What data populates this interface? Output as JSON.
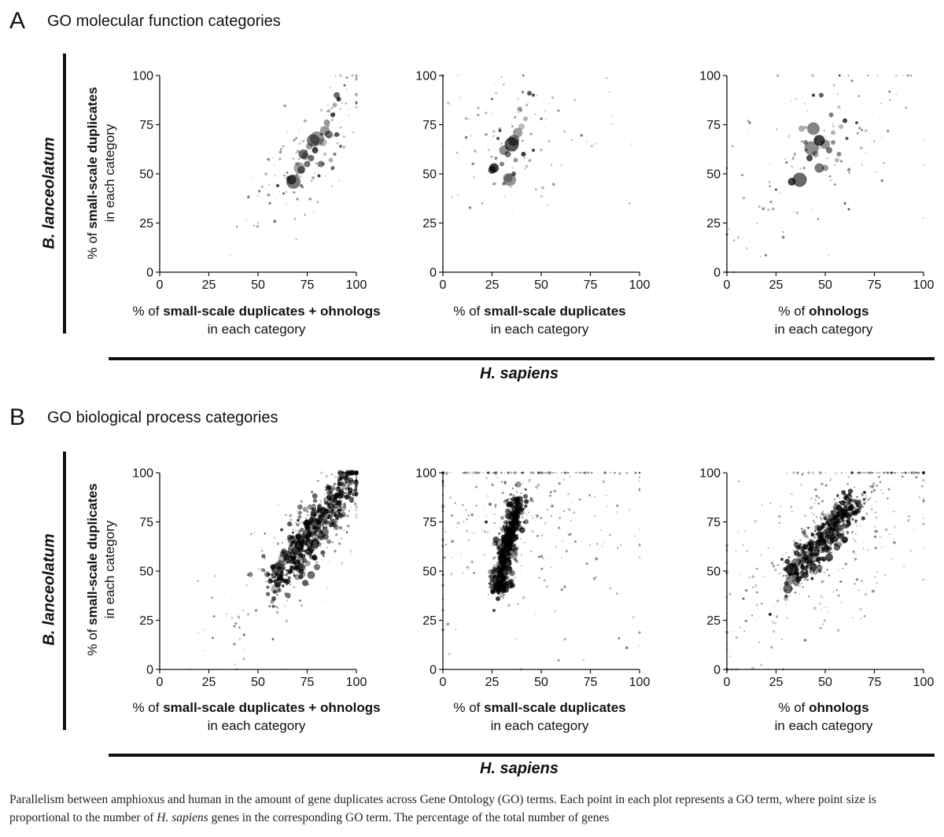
{
  "panels": [
    {
      "letter": "A",
      "title": "GO molecular function categories",
      "y_species": "B. lanceolatum",
      "x_species": "H. sapiens",
      "ylabel_prefix": "% of ",
      "ylabel_bold": "small-scale duplicates",
      "ylabel_line2": "in each category"
    },
    {
      "letter": "B",
      "title": "GO biological process categories",
      "y_species": "B. lanceolatum",
      "x_species": "H. sapiens",
      "ylabel_prefix": "% of ",
      "ylabel_bold": "small-scale duplicates",
      "ylabel_line2": "in each category"
    }
  ],
  "xlabels": [
    {
      "prefix": "% of ",
      "bold": "small-scale duplicates + ohnologs",
      "line2": "in each category"
    },
    {
      "prefix": "% of ",
      "bold": "small-scale duplicates",
      "line2": "in each category"
    },
    {
      "prefix": "% of ",
      "bold": "ohnologs",
      "line2": "in each category"
    }
  ],
  "caption": {
    "part1": "Parallelism between amphioxus and human in the amount of gene duplicates across Gene Ontology (GO) terms. Each point in each plot represents a GO term, where point size is proportional to the number of ",
    "italic": "H. sapiens",
    "part2": " genes in the corresponding GO term. The percentage of the total number of genes"
  },
  "chart_data": [
    {
      "type": "scatter",
      "panel": "A",
      "xlabel": "% of small-scale duplicates + ohnologs in each category",
      "ylabel": "% of small-scale duplicates in each category",
      "xlim": [
        0,
        100
      ],
      "ylim": [
        0,
        100
      ],
      "xticks": [
        0,
        25,
        50,
        75,
        100
      ],
      "yticks": [
        0,
        25,
        50,
        75,
        100
      ],
      "grid": false,
      "points": [
        [
          68,
          46,
          9
        ],
        [
          67,
          47,
          6
        ],
        [
          72,
          52,
          5
        ],
        [
          71,
          53,
          7
        ],
        [
          74,
          59,
          5
        ],
        [
          73,
          60,
          6
        ],
        [
          77,
          58,
          4
        ],
        [
          78,
          67,
          8
        ],
        [
          80,
          68,
          9
        ],
        [
          84,
          72,
          6
        ],
        [
          85,
          76,
          4
        ],
        [
          86,
          70,
          5
        ],
        [
          88,
          80,
          3
        ],
        [
          89,
          85,
          3
        ],
        [
          90,
          90,
          4
        ],
        [
          91,
          88,
          3
        ],
        [
          82,
          55,
          4
        ],
        [
          75,
          55,
          4
        ],
        [
          87,
          57,
          3
        ],
        [
          89,
          60,
          2
        ],
        [
          70,
          55,
          3
        ],
        [
          79,
          62,
          4
        ],
        [
          83,
          66,
          5
        ],
        [
          76,
          64,
          4
        ],
        [
          65,
          48,
          3
        ],
        [
          60,
          44,
          2
        ],
        [
          54,
          50,
          2
        ],
        [
          45,
          38,
          1.5
        ],
        [
          56,
          35,
          1.5
        ],
        [
          84,
          60,
          2
        ],
        [
          92,
          64,
          2
        ],
        [
          90,
          70,
          3
        ],
        [
          86,
          82,
          2
        ],
        [
          94,
          95,
          1.5
        ],
        [
          81,
          49,
          2
        ],
        [
          78,
          48,
          2
        ],
        [
          72,
          44,
          2
        ],
        [
          63,
          40,
          1.5
        ],
        [
          50,
          25,
          1.2
        ],
        [
          88,
          53,
          2.5
        ]
      ],
      "cloud": {
        "count": 120,
        "cx": 75,
        "cy": 60,
        "spread": 18,
        "slope": 1.0,
        "maxr": 1.6
      }
    },
    {
      "type": "scatter",
      "panel": "A",
      "xlabel": "% of small-scale duplicates in each category",
      "ylabel": "% of small-scale duplicates in each category",
      "xlim": [
        0,
        100
      ],
      "ylim": [
        0,
        100
      ],
      "xticks": [
        0,
        25,
        50,
        75,
        100
      ],
      "yticks": [
        0,
        25,
        50,
        75,
        100
      ],
      "grid": false,
      "points": [
        [
          26,
          53,
          6
        ],
        [
          25,
          52,
          5
        ],
        [
          31,
          62,
          6
        ],
        [
          35,
          65,
          9
        ],
        [
          36,
          67,
          7
        ],
        [
          38,
          71,
          6
        ],
        [
          40,
          74,
          4
        ],
        [
          34,
          47,
          8
        ],
        [
          33,
          48,
          6
        ],
        [
          30,
          55,
          3
        ],
        [
          37,
          57,
          3
        ],
        [
          39,
          83,
          3
        ],
        [
          44,
          91,
          3
        ],
        [
          46,
          90,
          2
        ],
        [
          29,
          72,
          2
        ],
        [
          28,
          68,
          2
        ],
        [
          42,
          78,
          3
        ],
        [
          33,
          60,
          4
        ],
        [
          41,
          60,
          3
        ],
        [
          27,
          58,
          2
        ],
        [
          22,
          70,
          1.5
        ],
        [
          20,
          35,
          1.5
        ],
        [
          36,
          50,
          3
        ],
        [
          31,
          45,
          2
        ],
        [
          25,
          88,
          1.5
        ],
        [
          18,
          80,
          1.5
        ],
        [
          50,
          78,
          1.5
        ],
        [
          46,
          62,
          2
        ]
      ],
      "cloud": {
        "count": 110,
        "cx": 35,
        "cy": 70,
        "spread": 22,
        "slope": 0.0,
        "maxr": 1.5
      }
    },
    {
      "type": "scatter",
      "panel": "A",
      "xlabel": "% of ohnologs in each category",
      "ylabel": "% of small-scale duplicates in each category",
      "xlim": [
        0,
        100
      ],
      "ylim": [
        0,
        100
      ],
      "xticks": [
        0,
        25,
        50,
        75,
        100
      ],
      "yticks": [
        0,
        25,
        50,
        75,
        100
      ],
      "grid": false,
      "points": [
        [
          37,
          47,
          9
        ],
        [
          33,
          46,
          5
        ],
        [
          43,
          63,
          9
        ],
        [
          44,
          73,
          8
        ],
        [
          47,
          67,
          7
        ],
        [
          50,
          65,
          6
        ],
        [
          45,
          60,
          4
        ],
        [
          47,
          53,
          6
        ],
        [
          50,
          53,
          4
        ],
        [
          52,
          62,
          4
        ],
        [
          54,
          66,
          3
        ],
        [
          56,
          57,
          3
        ],
        [
          57,
          60,
          3
        ],
        [
          58,
          74,
          3
        ],
        [
          60,
          77,
          3
        ],
        [
          38,
          73,
          4
        ],
        [
          40,
          66,
          3
        ],
        [
          42,
          58,
          4
        ],
        [
          54,
          71,
          3
        ],
        [
          53,
          80,
          3
        ],
        [
          48,
          90,
          3
        ],
        [
          62,
          52,
          2
        ],
        [
          61,
          68,
          2
        ],
        [
          66,
          76,
          2
        ],
        [
          60,
          35,
          1.5
        ],
        [
          62,
          32,
          1.5
        ],
        [
          25,
          42,
          1.5
        ],
        [
          57,
          84,
          2
        ],
        [
          44,
          90,
          2
        ]
      ],
      "cloud": {
        "count": 130,
        "cx": 50,
        "cy": 62,
        "spread": 28,
        "slope": 0.5,
        "maxr": 1.5
      }
    },
    {
      "type": "scatter",
      "panel": "B",
      "xlabel": "% of small-scale duplicates + ohnologs in each category",
      "ylabel": "% of small-scale duplicates in each category",
      "xlim": [
        0,
        100
      ],
      "ylim": [
        0,
        100
      ],
      "xticks": [
        0,
        25,
        50,
        75,
        100
      ],
      "yticks": [
        0,
        25,
        50,
        75,
        100
      ],
      "grid": false,
      "points": [
        [
          59,
          41,
          6
        ],
        [
          60,
          44,
          5
        ],
        [
          60,
          51,
          8
        ],
        [
          61,
          53,
          6
        ],
        [
          63,
          56,
          7
        ],
        [
          65,
          58,
          6
        ],
        [
          68,
          61,
          7
        ],
        [
          67,
          66,
          5
        ],
        [
          71,
          63,
          6
        ],
        [
          73,
          66,
          7
        ],
        [
          75,
          69,
          6
        ],
        [
          78,
          72,
          8
        ],
        [
          80,
          74,
          7
        ],
        [
          83,
          77,
          6
        ],
        [
          85,
          80,
          5
        ],
        [
          87,
          83,
          4
        ],
        [
          89,
          86,
          3
        ],
        [
          91,
          89,
          3
        ],
        [
          93,
          92,
          2
        ],
        [
          95,
          95,
          2
        ],
        [
          72,
          52,
          5
        ],
        [
          70,
          47,
          4
        ],
        [
          74,
          44,
          4
        ],
        [
          77,
          48,
          5
        ],
        [
          80,
          52,
          4
        ],
        [
          82,
          68,
          5
        ],
        [
          76,
          60,
          5
        ],
        [
          79,
          64,
          6
        ],
        [
          84,
          70,
          5
        ],
        [
          88,
          75,
          4
        ],
        [
          86,
          65,
          3
        ],
        [
          90,
          78,
          3
        ],
        [
          58,
          36,
          3
        ],
        [
          55,
          48,
          3
        ],
        [
          64,
          45,
          3
        ],
        [
          66,
          74,
          3
        ],
        [
          62,
          71,
          2
        ],
        [
          49,
          30,
          2
        ],
        [
          45,
          28,
          1.5
        ],
        [
          38,
          22,
          1.5
        ],
        [
          92,
          72,
          2
        ],
        [
          94,
          84,
          2
        ]
      ],
      "band": {
        "count": 700,
        "x0": 58,
        "y0": 42,
        "x1": 99,
        "y1": 99,
        "width": 8,
        "maxr": 3.2
      },
      "cloud": {
        "count": 160,
        "cx": 72,
        "cy": 60,
        "spread": 25,
        "slope": 1.0,
        "maxr": 1.4
      }
    },
    {
      "type": "scatter",
      "panel": "B",
      "xlabel": "% of small-scale duplicates in each category",
      "ylabel": "% of small-scale duplicates in each category",
      "xlim": [
        0,
        100
      ],
      "ylim": [
        0,
        100
      ],
      "xticks": [
        0,
        25,
        50,
        75,
        100
      ],
      "yticks": [
        0,
        25,
        50,
        75,
        100
      ],
      "grid": false,
      "points": [
        [
          28,
          42,
          6
        ],
        [
          29,
          46,
          5
        ],
        [
          30,
          50,
          7
        ],
        [
          31,
          56,
          6
        ],
        [
          32,
          60,
          7
        ],
        [
          33,
          66,
          8
        ],
        [
          34,
          70,
          7
        ],
        [
          35,
          74,
          8
        ],
        [
          36,
          78,
          6
        ],
        [
          37,
          82,
          5
        ],
        [
          38,
          86,
          4
        ],
        [
          30,
          62,
          5
        ],
        [
          36,
          58,
          5
        ],
        [
          33,
          54,
          5
        ],
        [
          39,
          72,
          4
        ],
        [
          27,
          66,
          4
        ],
        [
          40,
          80,
          4
        ],
        [
          28,
          36,
          3
        ],
        [
          26,
          30,
          2
        ],
        [
          42,
          88,
          3
        ],
        [
          24,
          84,
          2
        ],
        [
          45,
          86,
          2
        ],
        [
          48,
          78,
          2
        ],
        [
          22,
          75,
          2
        ],
        [
          31,
          40,
          3
        ],
        [
          35,
          45,
          3
        ]
      ],
      "band": {
        "count": 700,
        "x0": 28,
        "y0": 40,
        "x1": 38,
        "y1": 88,
        "width": 4.5,
        "maxr": 3.4
      },
      "cloud": {
        "count": 420,
        "cx": 35,
        "cy": 85,
        "spread": 40,
        "slope": 0.0,
        "maxr": 1.5
      }
    },
    {
      "type": "scatter",
      "panel": "B",
      "xlabel": "% of ohnologs in each category",
      "ylabel": "% of small-scale duplicates in each category",
      "xlim": [
        0,
        100
      ],
      "ylim": [
        0,
        100
      ],
      "xticks": [
        0,
        25,
        50,
        75,
        100
      ],
      "yticks": [
        0,
        25,
        50,
        75,
        100
      ],
      "grid": false,
      "points": [
        [
          31,
          41,
          6
        ],
        [
          32,
          45,
          5
        ],
        [
          33,
          51,
          8
        ],
        [
          35,
          54,
          6
        ],
        [
          38,
          56,
          7
        ],
        [
          42,
          58,
          7
        ],
        [
          45,
          60,
          6
        ],
        [
          48,
          64,
          7
        ],
        [
          50,
          68,
          7
        ],
        [
          53,
          72,
          6
        ],
        [
          55,
          75,
          6
        ],
        [
          58,
          78,
          5
        ],
        [
          60,
          80,
          4
        ],
        [
          63,
          82,
          4
        ],
        [
          66,
          85,
          3
        ],
        [
          40,
          48,
          4
        ],
        [
          44,
          52,
          5
        ],
        [
          52,
          57,
          5
        ],
        [
          56,
          62,
          4
        ],
        [
          60,
          66,
          4
        ],
        [
          46,
          72,
          4
        ],
        [
          50,
          78,
          3
        ],
        [
          62,
          74,
          3
        ],
        [
          36,
          62,
          3
        ],
        [
          30,
          36,
          3
        ],
        [
          22,
          28,
          2
        ],
        [
          28,
          56,
          2
        ],
        [
          70,
          90,
          2
        ],
        [
          74,
          93,
          2
        ],
        [
          40,
          62,
          3
        ]
      ],
      "band": {
        "count": 650,
        "x0": 33,
        "y0": 47,
        "x1": 66,
        "y1": 86,
        "width": 7,
        "maxr": 3.2
      },
      "cloud": {
        "count": 420,
        "cx": 55,
        "cy": 75,
        "spread": 35,
        "slope": 0.8,
        "maxr": 1.5
      }
    }
  ]
}
